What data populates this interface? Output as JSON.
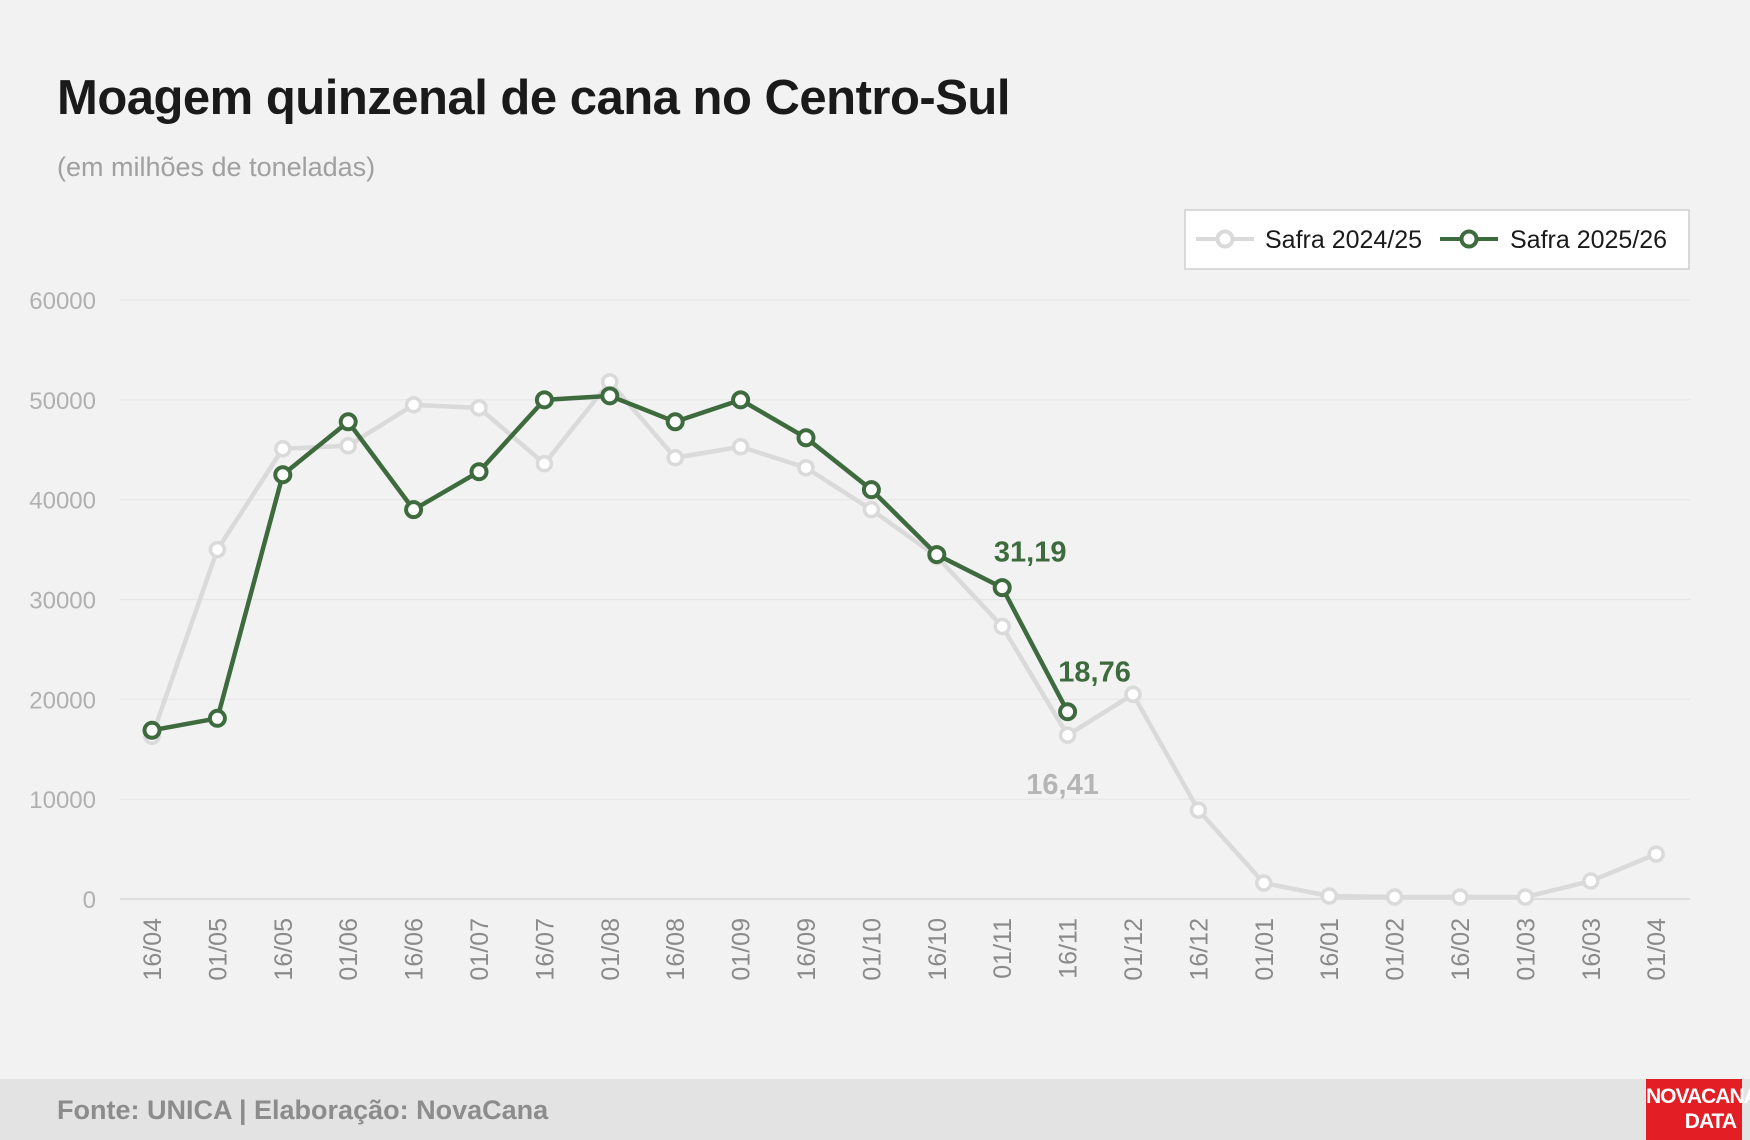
{
  "title": "Moagem quinzenal de cana no Centro-Sul",
  "subtitle": "(em milhões de toneladas)",
  "footer": {
    "source": "Fonte: UNICA | Elaboração: NovaCana",
    "logo_line1": "NOVACANA",
    "logo_line2": "DATA"
  },
  "colors": {
    "series_2024": "#dadada",
    "series_2025": "#3d6b3e",
    "grid": "#e6e6e6",
    "tick_text": "#b0b0b0",
    "annotation_2024": "#b5b5b5"
  },
  "chart_data": {
    "type": "line",
    "title": "Moagem quinzenal de cana no Centro-Sul",
    "subtitle": "(em milhões de toneladas)",
    "xlabel": "",
    "ylabel": "",
    "ylim": [
      0,
      60000
    ],
    "yticks": [
      0,
      10000,
      20000,
      30000,
      40000,
      50000,
      60000
    ],
    "grid": true,
    "legend_position": "top-right",
    "categories": [
      "16/04",
      "01/05",
      "16/05",
      "01/06",
      "16/06",
      "01/07",
      "16/07",
      "01/08",
      "16/08",
      "01/09",
      "16/09",
      "01/10",
      "16/10",
      "01/11",
      "16/11",
      "01/12",
      "16/12",
      "01/01",
      "16/01",
      "01/02",
      "16/02",
      "01/03",
      "16/03",
      "01/04"
    ],
    "series": [
      {
        "name": "Safra 2024/25",
        "color": "#dadada",
        "values": [
          16300,
          35000,
          45100,
          45400,
          49500,
          49200,
          43600,
          51800,
          44200,
          45300,
          43200,
          39000,
          34300,
          27300,
          16410,
          20500,
          8900,
          1600,
          300,
          200,
          200,
          200,
          1800,
          4500
        ]
      },
      {
        "name": "Safra 2025/26",
        "color": "#3d6b3e",
        "values": [
          16900,
          18100,
          42500,
          47800,
          39000,
          42800,
          50000,
          50400,
          47800,
          50000,
          46200,
          41000,
          34500,
          31190,
          18760,
          null,
          null,
          null,
          null,
          null,
          null,
          null,
          null,
          null
        ]
      }
    ],
    "annotations": [
      {
        "text": "31,19",
        "series": "Safra 2025/26",
        "category": "01/11"
      },
      {
        "text": "18,76",
        "series": "Safra 2025/26",
        "category": "16/11"
      },
      {
        "text": "16,41",
        "series": "Safra 2024/25",
        "category": "16/11"
      }
    ]
  }
}
